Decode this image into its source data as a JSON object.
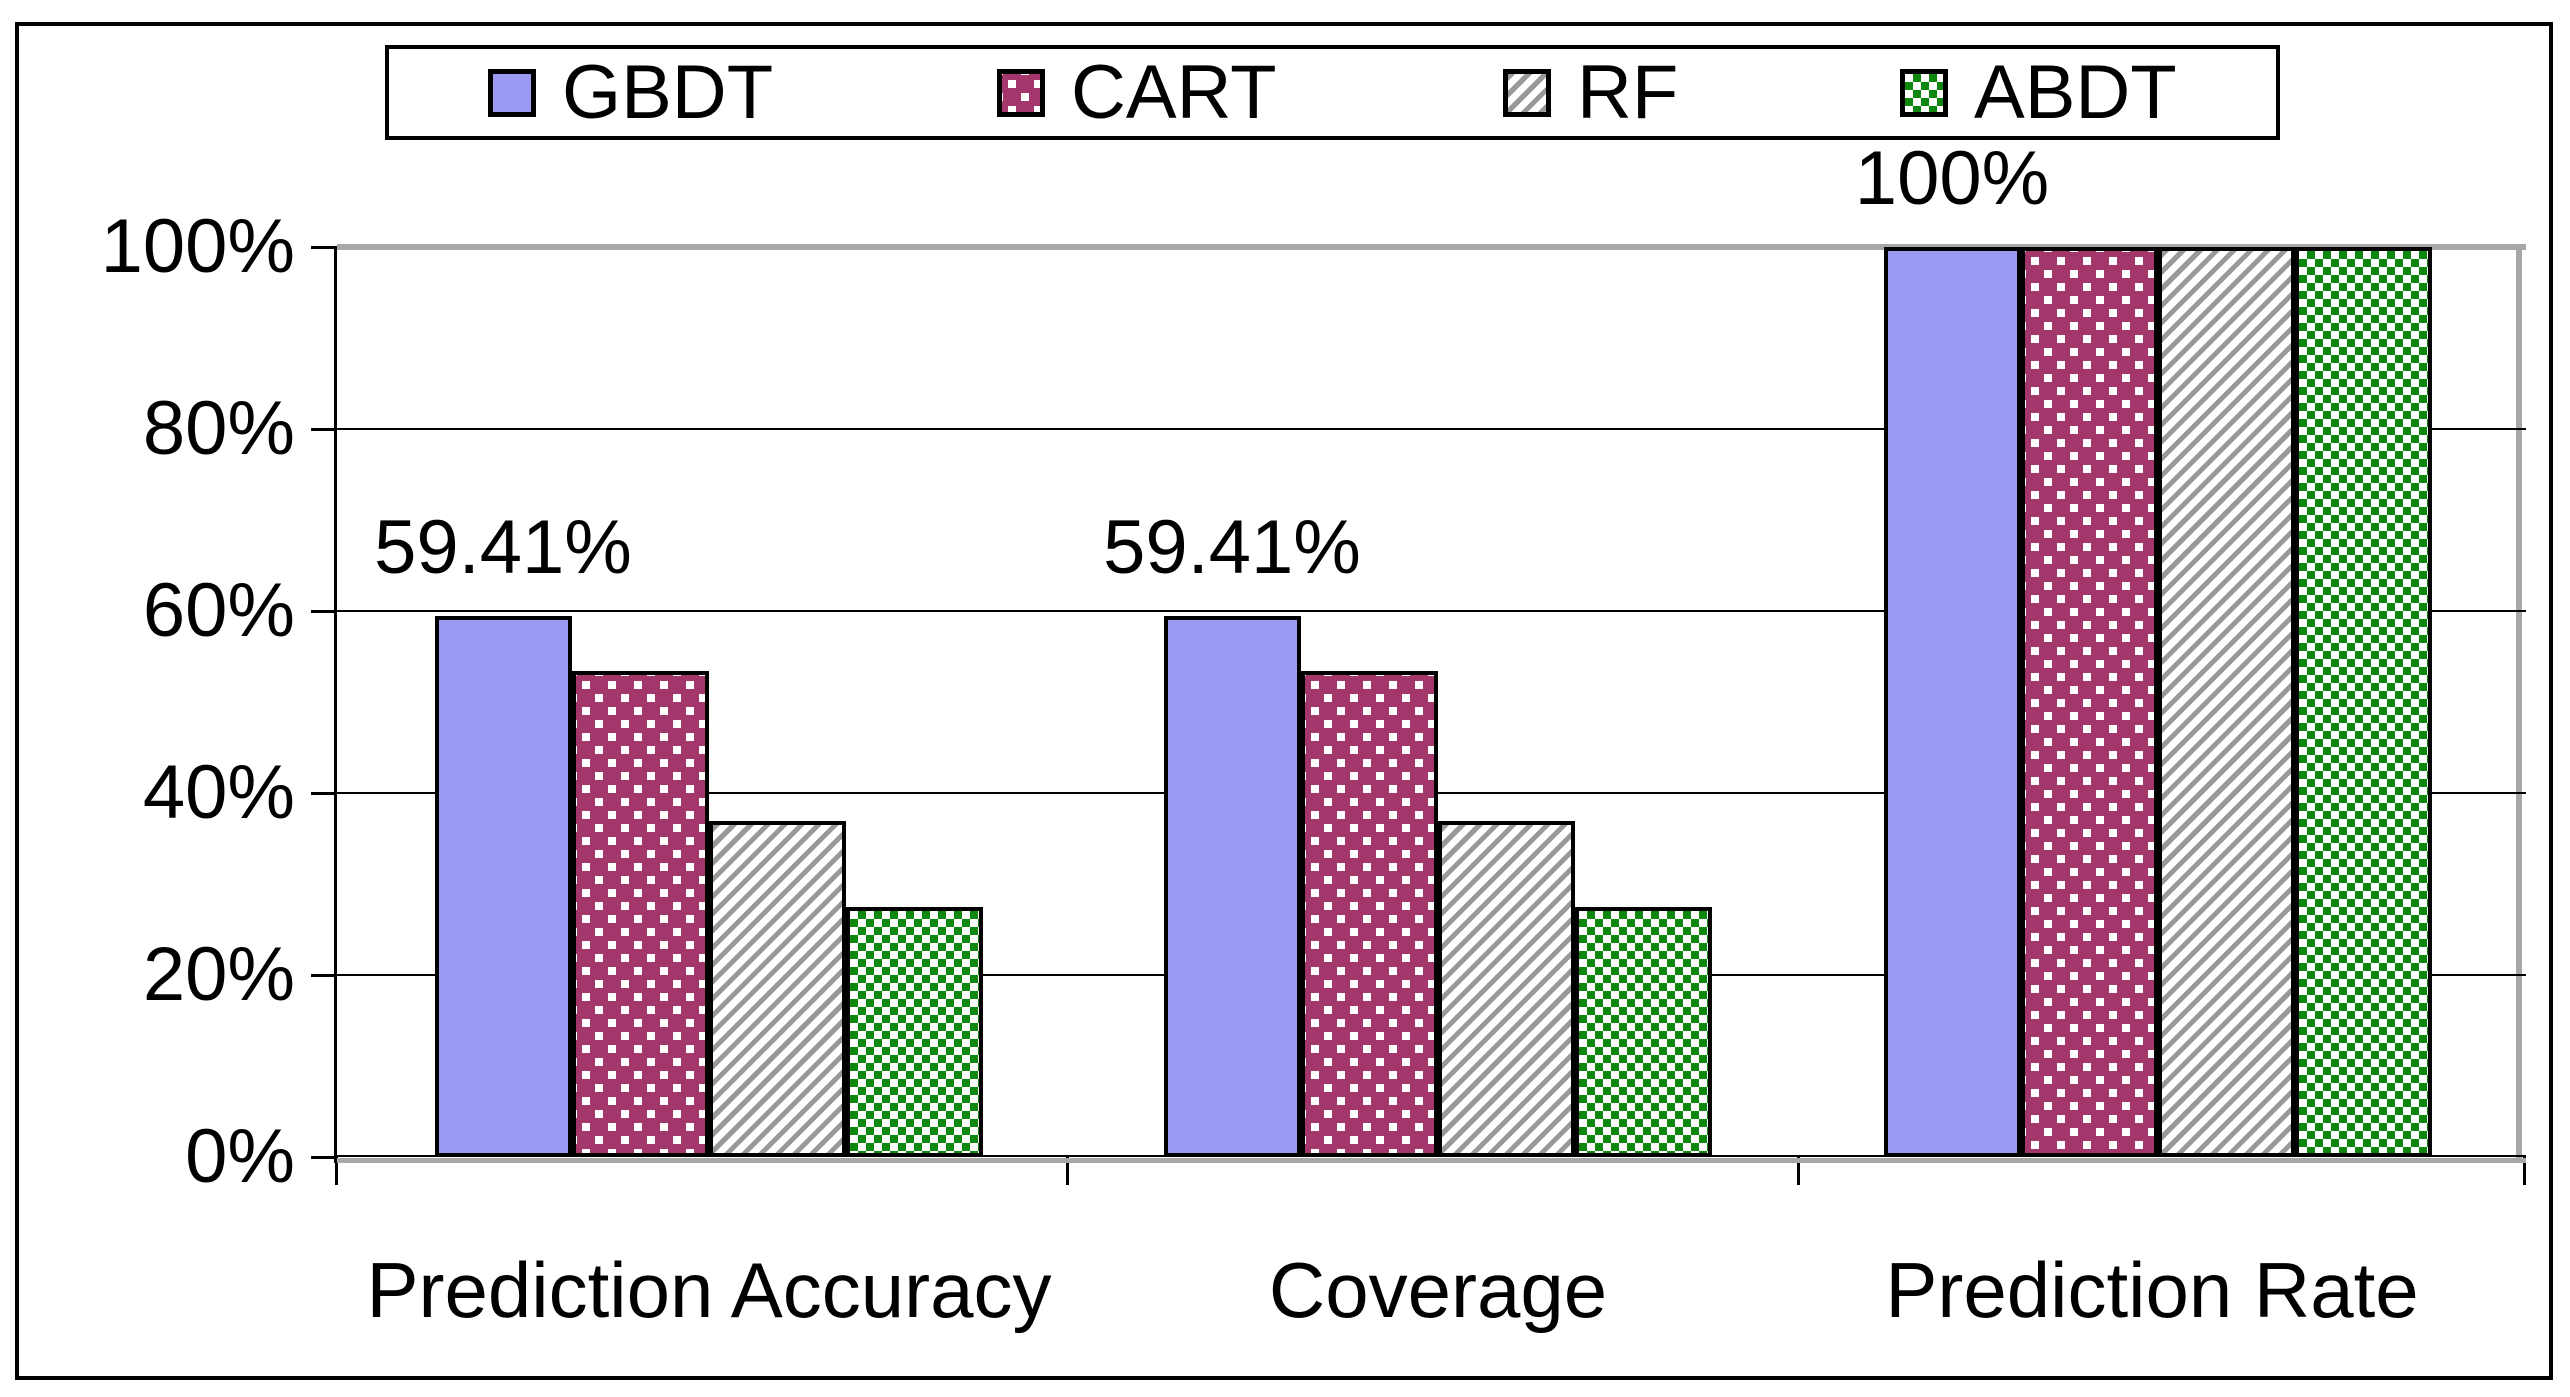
{
  "chart_data": {
    "type": "bar",
    "title": "",
    "categories": [
      "Prediction Accuracy",
      "Coverage",
      "Prediction Rate"
    ],
    "series": [
      {
        "name": "GBDT",
        "pattern": "solid",
        "color": "#9a9af2",
        "values": [
          59.41,
          59.41,
          100
        ]
      },
      {
        "name": "CART",
        "pattern": "dotted-squares",
        "color": "#a3366b",
        "dot_color": "#ffffff",
        "values": [
          53.4,
          53.4,
          100
        ]
      },
      {
        "name": "RF",
        "pattern": "diagonal-stripes",
        "color": "#999999",
        "background": "#ffffff",
        "values": [
          36.9,
          36.9,
          100
        ]
      },
      {
        "name": "ABDT",
        "pattern": "checkerboard",
        "color": "#0e870e",
        "background": "#ffffff",
        "values": [
          27.5,
          27.5,
          100
        ]
      }
    ],
    "data_labels": [
      "59.41%",
      "59.41%",
      "100%"
    ],
    "y_axis": {
      "ticks": [
        "0%",
        "20%",
        "40%",
        "60%",
        "80%",
        "100%"
      ],
      "min": 0,
      "max": 100,
      "unit": "%"
    },
    "gridlines_at": [
      20,
      40,
      60,
      80
    ],
    "grid": true,
    "legend_position": "top",
    "axis_color": "#000000",
    "frame_shadow_color": "#a8a8a8"
  }
}
